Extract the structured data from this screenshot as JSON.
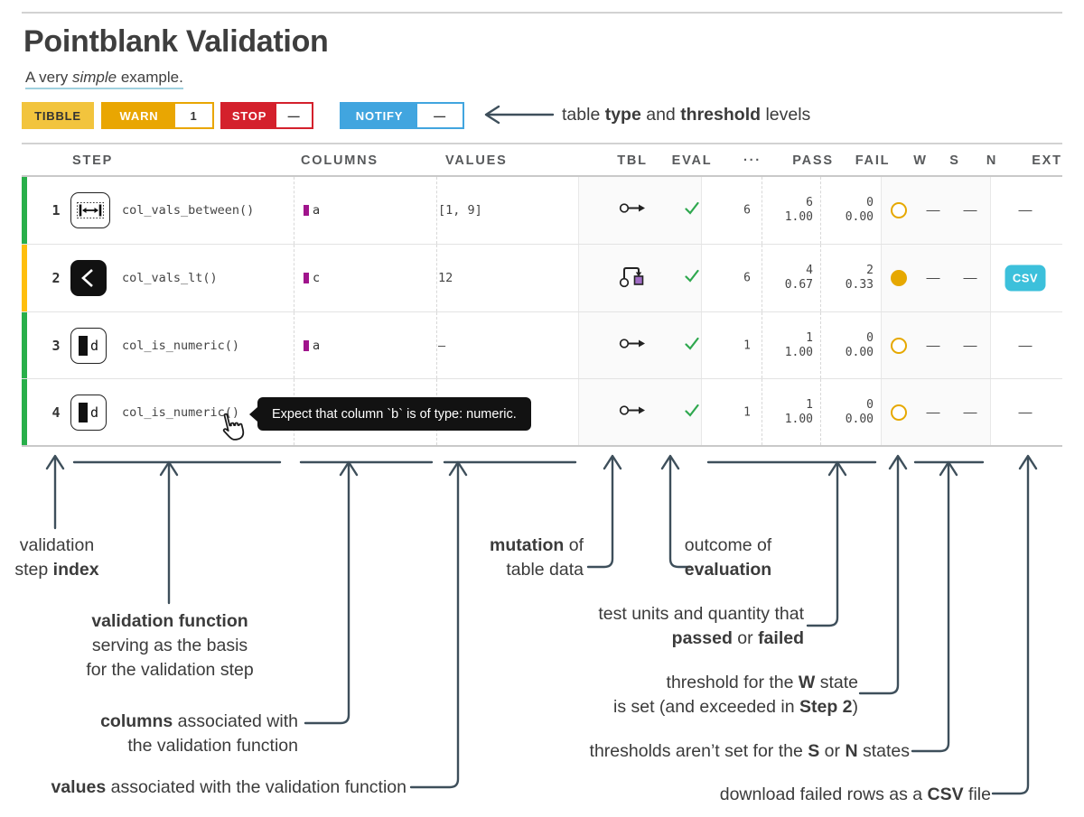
{
  "page": {
    "title": "Pointblank Validation"
  },
  "subtitle_segments": [
    {
      "t": "A very "
    },
    {
      "t": "simple",
      "i": true
    },
    {
      "t": " example."
    }
  ],
  "badges": {
    "tibble": "TIBBLE",
    "warn": {
      "label": "WARN",
      "value": "1"
    },
    "stop": {
      "label": "STOP",
      "value": "—"
    },
    "notify": {
      "label": "NOTIFY",
      "value": "—"
    }
  },
  "table": {
    "headers": [
      "STEP",
      "COLUMNS",
      "VALUES",
      "TBL",
      "EVAL",
      "···",
      "PASS",
      "FAIL",
      "W",
      "S",
      "N",
      "EXT"
    ],
    "rows": [
      {
        "index": "1",
        "icon": "between-icon",
        "fn": "col_vals_between()",
        "column": "a",
        "values": "[1, 9]",
        "tbl": "no-mutation",
        "eval": "pass",
        "units": "6",
        "pass_n": "6",
        "pass_f": "1.00",
        "fail_n": "0",
        "fail_f": "0.00",
        "w": "open-ring",
        "s": "—",
        "n": "—",
        "ext": "—",
        "severity": "green"
      },
      {
        "index": "2",
        "icon": "less-than-icon",
        "fn": "col_vals_lt()",
        "column": "c",
        "values": "12",
        "tbl": "mutation",
        "eval": "pass",
        "units": "6",
        "pass_n": "4",
        "pass_f": "0.67",
        "fail_n": "2",
        "fail_f": "0.33",
        "w": "filled-dot",
        "s": "—",
        "n": "—",
        "ext": "CSV",
        "severity": "amber"
      },
      {
        "index": "3",
        "icon": "numeric-icon",
        "fn": "col_is_numeric()",
        "column": "a",
        "values": "—",
        "tbl": "no-mutation",
        "eval": "pass",
        "units": "1",
        "pass_n": "1",
        "pass_f": "1.00",
        "fail_n": "0",
        "fail_f": "0.00",
        "w": "open-ring",
        "s": "—",
        "n": "—",
        "ext": "—",
        "severity": "green"
      },
      {
        "index": "4",
        "icon": "numeric-icon",
        "fn": "col_is_numeric()",
        "tbl": "no-mutation",
        "eval": "pass",
        "units": "1",
        "pass_n": "1",
        "pass_f": "1.00",
        "fail_n": "0",
        "fail_f": "0.00",
        "w": "open-ring",
        "s": "—",
        "n": "—",
        "ext": "—",
        "severity": "green"
      }
    ]
  },
  "tooltip": {
    "text": "Expect that column `b` is of type: numeric."
  },
  "annotations": {
    "top_label": [
      {
        "t": "table "
      },
      {
        "t": "type",
        "b": true
      },
      {
        "t": " and "
      },
      {
        "t": "threshold",
        "b": true
      },
      {
        "t": " levels"
      }
    ],
    "step_index": [
      {
        "t": "validation\nstep "
      },
      {
        "t": "index",
        "b": true
      }
    ],
    "validation_function": [
      {
        "t": "validation function",
        "b": true
      },
      {
        "t": "\nserving as the basis\nfor the validation step"
      }
    ],
    "columns_assoc": [
      {
        "t": "columns",
        "b": true
      },
      {
        "t": " associated with\nthe validation function"
      }
    ],
    "values_assoc": [
      {
        "t": "values",
        "b": true
      },
      {
        "t": " associated with the validation function"
      }
    ],
    "mutation": [
      {
        "t": "mutation",
        "b": true
      },
      {
        "t": " of\ntable data"
      }
    ],
    "outcome": [
      {
        "t": "outcome of\n"
      },
      {
        "t": "evaluation",
        "b": true
      }
    ],
    "test_units": [
      {
        "t": "test units and quantity that\n"
      },
      {
        "t": "passed",
        "b": true
      },
      {
        "t": " or "
      },
      {
        "t": "failed",
        "b": true
      }
    ],
    "w_threshold": [
      {
        "t": "threshold for the "
      },
      {
        "t": "W",
        "b": true
      },
      {
        "t": " state\nis set (and exceeded in "
      },
      {
        "t": "Step 2",
        "b": true
      },
      {
        "t": ")"
      }
    ],
    "sn_thresholds": [
      {
        "t": "thresholds aren’t set for the "
      },
      {
        "t": "S",
        "b": true
      },
      {
        "t": " or "
      },
      {
        "t": "N",
        "b": true
      },
      {
        "t": " states"
      }
    ],
    "csv_download": [
      {
        "t": "download failed rows as a "
      },
      {
        "t": "CSV",
        "b": true
      },
      {
        "t": " file"
      }
    ]
  },
  "colors": {
    "line_slate": "#3e4f5b",
    "text_dark": "#3b3b3b",
    "tibble_gold": "#f2c43d",
    "warn_orange": "#e9a602",
    "stop_red": "#d4202c",
    "notify_blue": "#41a5df",
    "severity_green": "#28af4a",
    "severity_amber": "#ffbe0b",
    "check_green": "#2fa84f",
    "w_gold": "#e6a800",
    "csv_cyan": "#3cc0db",
    "chip_magenta": "#a0148c",
    "mutation_purple": "#a06cc4",
    "underline_blue": "#9fd0de"
  }
}
